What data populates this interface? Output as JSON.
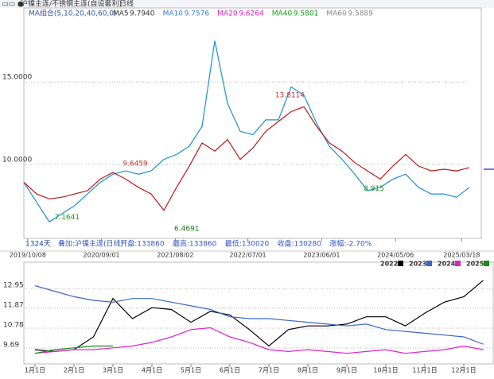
{
  "header": {
    "title": "沪镍主连/不锈钢主连(自设套利)",
    "period": "日线",
    "ma_group": "MA组合(5,10,20,40,60,0)",
    "ma": [
      {
        "name": "MA5",
        "label": "9.7940",
        "color": "#333333"
      },
      {
        "name": "MA10",
        "label": "9.7576",
        "color": "#3a7bd5"
      },
      {
        "name": "MA20",
        "label": "9.6264",
        "color": "#e020c0"
      },
      {
        "name": "MA40",
        "label": "9.5801",
        "color": "#1a9a1a"
      },
      {
        "name": "MA60",
        "label": "9.5889",
        "color": "#888888"
      }
    ]
  },
  "info_bar": [
    "1324天",
    "叠加:沪镍主连(日线)",
    "开盘:133860",
    "最高:133860",
    "最低:130020",
    "收盘:130280",
    "涨幅:-2.70%"
  ],
  "chart_data": [
    {
      "type": "line",
      "xlim": [
        0,
        35
      ],
      "ylim": [
        5.5,
        19.5
      ],
      "yticks": [
        {
          "value": 15,
          "label": "15.0000"
        },
        {
          "value": 10,
          "label": "10.0000"
        }
      ],
      "xticks": [
        {
          "value": 0.3,
          "label": "2019/10/08"
        },
        {
          "value": 6.1,
          "label": "2020/09/01"
        },
        {
          "value": 11.9,
          "label": "2021/08/02"
        },
        {
          "value": 17.6,
          "label": "2022/07/01"
        },
        {
          "value": 23.4,
          "label": "2023/06/01"
        },
        {
          "value": 29.2,
          "label": "2024/05/06"
        },
        {
          "value": 34.4,
          "label": "2025/03/18"
        }
      ],
      "grid": true,
      "series": [
        {
          "color": "#1a8fd6",
          "values": [
            8.9,
            7.7,
            6.5,
            7.0,
            7.5,
            8.2,
            8.9,
            9.4,
            9.6,
            9.4,
            9.6,
            10.3,
            10.6,
            11.1,
            12.3,
            17.5,
            13.7,
            12.0,
            11.8,
            12.7,
            12.7,
            14.7,
            14.2,
            12.5,
            11.1,
            10.3,
            9.4,
            8.4,
            8.6,
            9.1,
            9.4,
            8.6,
            8.2,
            8.2,
            8.0,
            8.6
          ]
        },
        {
          "color": "#c01818",
          "values": [
            8.9,
            8.2,
            7.9,
            8.0,
            8.2,
            8.4,
            9.1,
            9.5,
            9.1,
            8.6,
            8.2,
            7.2,
            8.6,
            9.9,
            11.3,
            10.8,
            11.5,
            10.3,
            11.0,
            12.0,
            12.6,
            13.2,
            13.5,
            12.3,
            11.3,
            10.8,
            10.1,
            9.6,
            9.1,
            9.9,
            10.6,
            9.9,
            9.6,
            9.7,
            9.6,
            9.8
          ]
        }
      ],
      "annotations": [
        {
          "label": "9.6459",
          "value": 9.6459,
          "x": 8.75,
          "color": "#d03030"
        },
        {
          "label": "7.1641",
          "value": 7.1641,
          "x": 3.4,
          "color": "#1a9a1a"
        },
        {
          "label": "6.4691",
          "value": 6.4691,
          "x": 12.8,
          "color": "#1a7a1a"
        },
        {
          "label": "13.8114",
          "value": 13.8114,
          "x": 20.9,
          "color": "#d03030"
        },
        {
          "label": "8.915",
          "value": 8.915,
          "x": 27.5,
          "color": "#1a9a1a"
        }
      ]
    },
    {
      "type": "line",
      "xlim": [
        0,
        23
      ],
      "ylim": [
        8.82,
        14.39
      ],
      "yticks": [
        12.95,
        11.87,
        10.78,
        9.69
      ],
      "xticks": [
        {
          "value": 0,
          "label": "1月1日"
        },
        {
          "value": 2,
          "label": "2月1日"
        },
        {
          "value": 4,
          "label": "3月1日"
        },
        {
          "value": 6,
          "label": "4月1日"
        },
        {
          "value": 8,
          "label": "5月1日"
        },
        {
          "value": 10,
          "label": "6月1日"
        },
        {
          "value": 12,
          "label": "7月1日"
        },
        {
          "value": 14,
          "label": "8月1日"
        },
        {
          "value": 16,
          "label": "9月1日"
        },
        {
          "value": 18,
          "label": "10月1日"
        },
        {
          "value": 20,
          "label": "11月1日"
        },
        {
          "value": 22,
          "label": "12月1日"
        }
      ],
      "grid": true,
      "series": [
        {
          "name": "2022",
          "color": "#000000",
          "values": [
            9.6,
            9.5,
            9.6,
            10.3,
            12.4,
            11.3,
            11.9,
            11.8,
            11.1,
            11.7,
            11.5,
            10.7,
            9.8,
            10.7,
            10.9,
            10.9,
            11.0,
            11.4,
            11.4,
            10.9,
            11.6,
            12.2,
            12.5,
            13.4
          ]
        },
        {
          "name": "2023",
          "color": "#3a66c8",
          "values": [
            13.1,
            12.8,
            12.5,
            12.3,
            12.2,
            12.4,
            12.4,
            12.2,
            12.0,
            11.8,
            11.4,
            11.3,
            11.3,
            11.2,
            11.1,
            11.0,
            10.9,
            11.0,
            10.7,
            10.6,
            10.5,
            10.4,
            10.3,
            9.9
          ]
        },
        {
          "name": "2024",
          "color": "#e020d0",
          "values": [
            9.4,
            9.5,
            9.6,
            9.6,
            9.7,
            9.8,
            10.0,
            10.3,
            10.7,
            10.8,
            10.3,
            10.0,
            9.6,
            9.5,
            9.6,
            9.5,
            9.4,
            9.5,
            9.6,
            9.4,
            9.5,
            9.6,
            9.8,
            9.6
          ]
        },
        {
          "name": "2025",
          "color": "#1a8a1a",
          "values": [
            9.4,
            9.6,
            9.7,
            9.8,
            9.8,
            null,
            null,
            null,
            null,
            null,
            null,
            null,
            null,
            null,
            null,
            null,
            null,
            null,
            null,
            null,
            null,
            null,
            null,
            null
          ]
        }
      ]
    }
  ]
}
